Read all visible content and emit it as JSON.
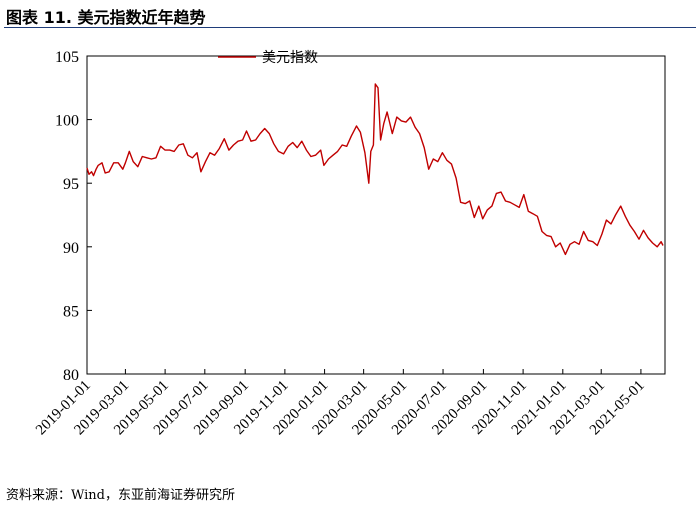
{
  "figure_title": "图表 11. 美元指数近年趋势",
  "source_note": "资料来源：Wind，东亚前海证券研究所",
  "chart_data": {
    "type": "line",
    "title": "",
    "xlabel": "",
    "ylabel": "",
    "ylim": [
      80,
      105
    ],
    "yticks": [
      80,
      85,
      90,
      95,
      100,
      105
    ],
    "xlim": [
      "2019-01-01",
      "2021-06-07"
    ],
    "xticks": [
      "2019-01-01",
      "2019-03-01",
      "2019-05-01",
      "2019-07-01",
      "2019-09-01",
      "2019-11-01",
      "2020-01-01",
      "2020-03-01",
      "2020-05-01",
      "2020-07-01",
      "2020-09-01",
      "2020-11-01",
      "2021-01-01",
      "2021-03-01",
      "2021-05-01"
    ],
    "grid": false,
    "legend_position": "top-left",
    "series": [
      {
        "name": "美元指数",
        "color": "#c00000",
        "points": [
          [
            "2019-01-01",
            96.2
          ],
          [
            "2019-01-04",
            95.7
          ],
          [
            "2019-01-08",
            95.9
          ],
          [
            "2019-01-11",
            95.6
          ],
          [
            "2019-01-15",
            96.1
          ],
          [
            "2019-01-18",
            96.4
          ],
          [
            "2019-01-24",
            96.6
          ],
          [
            "2019-01-29",
            95.8
          ],
          [
            "2019-02-04",
            95.9
          ],
          [
            "2019-02-11",
            96.6
          ],
          [
            "2019-02-18",
            96.6
          ],
          [
            "2019-02-25",
            96.1
          ],
          [
            "2019-03-01",
            96.6
          ],
          [
            "2019-03-07",
            97.5
          ],
          [
            "2019-03-13",
            96.7
          ],
          [
            "2019-03-20",
            96.3
          ],
          [
            "2019-03-27",
            97.1
          ],
          [
            "2019-04-03",
            97.0
          ],
          [
            "2019-04-10",
            96.9
          ],
          [
            "2019-04-17",
            97.0
          ],
          [
            "2019-04-24",
            97.9
          ],
          [
            "2019-05-01",
            97.6
          ],
          [
            "2019-05-08",
            97.6
          ],
          [
            "2019-05-15",
            97.5
          ],
          [
            "2019-05-22",
            98.0
          ],
          [
            "2019-05-29",
            98.1
          ],
          [
            "2019-06-05",
            97.2
          ],
          [
            "2019-06-12",
            97.0
          ],
          [
            "2019-06-19",
            97.4
          ],
          [
            "2019-06-25",
            95.9
          ],
          [
            "2019-07-02",
            96.7
          ],
          [
            "2019-07-09",
            97.4
          ],
          [
            "2019-07-16",
            97.2
          ],
          [
            "2019-07-23",
            97.7
          ],
          [
            "2019-07-31",
            98.5
          ],
          [
            "2019-08-07",
            97.6
          ],
          [
            "2019-08-14",
            98.0
          ],
          [
            "2019-08-21",
            98.3
          ],
          [
            "2019-08-28",
            98.4
          ],
          [
            "2019-09-03",
            99.1
          ],
          [
            "2019-09-10",
            98.3
          ],
          [
            "2019-09-17",
            98.4
          ],
          [
            "2019-09-24",
            98.9
          ],
          [
            "2019-10-01",
            99.3
          ],
          [
            "2019-10-08",
            98.9
          ],
          [
            "2019-10-15",
            98.1
          ],
          [
            "2019-10-22",
            97.5
          ],
          [
            "2019-10-30",
            97.3
          ],
          [
            "2019-11-06",
            97.9
          ],
          [
            "2019-11-13",
            98.2
          ],
          [
            "2019-11-20",
            97.8
          ],
          [
            "2019-11-27",
            98.3
          ],
          [
            "2019-12-04",
            97.6
          ],
          [
            "2019-12-11",
            97.1
          ],
          [
            "2019-12-18",
            97.2
          ],
          [
            "2019-12-26",
            97.6
          ],
          [
            "2019-12-31",
            96.4
          ],
          [
            "2020-01-07",
            96.9
          ],
          [
            "2020-01-14",
            97.2
          ],
          [
            "2020-01-21",
            97.5
          ],
          [
            "2020-01-28",
            98.0
          ],
          [
            "2020-02-04",
            97.9
          ],
          [
            "2020-02-11",
            98.7
          ],
          [
            "2020-02-19",
            99.5
          ],
          [
            "2020-02-25",
            99.0
          ],
          [
            "2020-03-03",
            97.4
          ],
          [
            "2020-03-09",
            95.0
          ],
          [
            "2020-03-12",
            97.5
          ],
          [
            "2020-03-16",
            98.0
          ],
          [
            "2020-03-19",
            102.8
          ],
          [
            "2020-03-23",
            102.5
          ],
          [
            "2020-03-27",
            98.4
          ],
          [
            "2020-04-01",
            99.7
          ],
          [
            "2020-04-06",
            100.6
          ],
          [
            "2020-04-14",
            98.9
          ],
          [
            "2020-04-21",
            100.2
          ],
          [
            "2020-04-28",
            99.9
          ],
          [
            "2020-05-05",
            99.8
          ],
          [
            "2020-05-12",
            100.2
          ],
          [
            "2020-05-19",
            99.4
          ],
          [
            "2020-05-26",
            98.9
          ],
          [
            "2020-06-02",
            97.8
          ],
          [
            "2020-06-09",
            96.1
          ],
          [
            "2020-06-16",
            96.9
          ],
          [
            "2020-06-23",
            96.7
          ],
          [
            "2020-06-30",
            97.4
          ],
          [
            "2020-07-07",
            96.8
          ],
          [
            "2020-07-14",
            96.5
          ],
          [
            "2020-07-21",
            95.4
          ],
          [
            "2020-07-28",
            93.5
          ],
          [
            "2020-08-04",
            93.4
          ],
          [
            "2020-08-11",
            93.6
          ],
          [
            "2020-08-18",
            92.3
          ],
          [
            "2020-08-25",
            93.2
          ],
          [
            "2020-08-31",
            92.2
          ],
          [
            "2020-09-07",
            92.9
          ],
          [
            "2020-09-14",
            93.2
          ],
          [
            "2020-09-21",
            94.2
          ],
          [
            "2020-09-28",
            94.3
          ],
          [
            "2020-10-05",
            93.6
          ],
          [
            "2020-10-12",
            93.5
          ],
          [
            "2020-10-19",
            93.3
          ],
          [
            "2020-10-26",
            93.1
          ],
          [
            "2020-11-02",
            94.1
          ],
          [
            "2020-11-09",
            92.8
          ],
          [
            "2020-11-16",
            92.6
          ],
          [
            "2020-11-23",
            92.4
          ],
          [
            "2020-11-30",
            91.2
          ],
          [
            "2020-12-07",
            90.9
          ],
          [
            "2020-12-14",
            90.8
          ],
          [
            "2020-12-21",
            90.0
          ],
          [
            "2020-12-28",
            90.3
          ],
          [
            "2021-01-05",
            89.4
          ],
          [
            "2021-01-12",
            90.2
          ],
          [
            "2021-01-19",
            90.4
          ],
          [
            "2021-01-26",
            90.2
          ],
          [
            "2021-02-02",
            91.2
          ],
          [
            "2021-02-09",
            90.5
          ],
          [
            "2021-02-16",
            90.4
          ],
          [
            "2021-02-23",
            90.1
          ],
          [
            "2021-03-02",
            91.0
          ],
          [
            "2021-03-09",
            92.1
          ],
          [
            "2021-03-16",
            91.8
          ],
          [
            "2021-03-23",
            92.5
          ],
          [
            "2021-03-31",
            93.2
          ],
          [
            "2021-04-07",
            92.4
          ],
          [
            "2021-04-14",
            91.7
          ],
          [
            "2021-04-21",
            91.2
          ],
          [
            "2021-04-28",
            90.6
          ],
          [
            "2021-05-05",
            91.3
          ],
          [
            "2021-05-12",
            90.7
          ],
          [
            "2021-05-19",
            90.3
          ],
          [
            "2021-05-26",
            90.0
          ],
          [
            "2021-06-01",
            90.4
          ],
          [
            "2021-06-04",
            90.1
          ]
        ]
      }
    ]
  }
}
